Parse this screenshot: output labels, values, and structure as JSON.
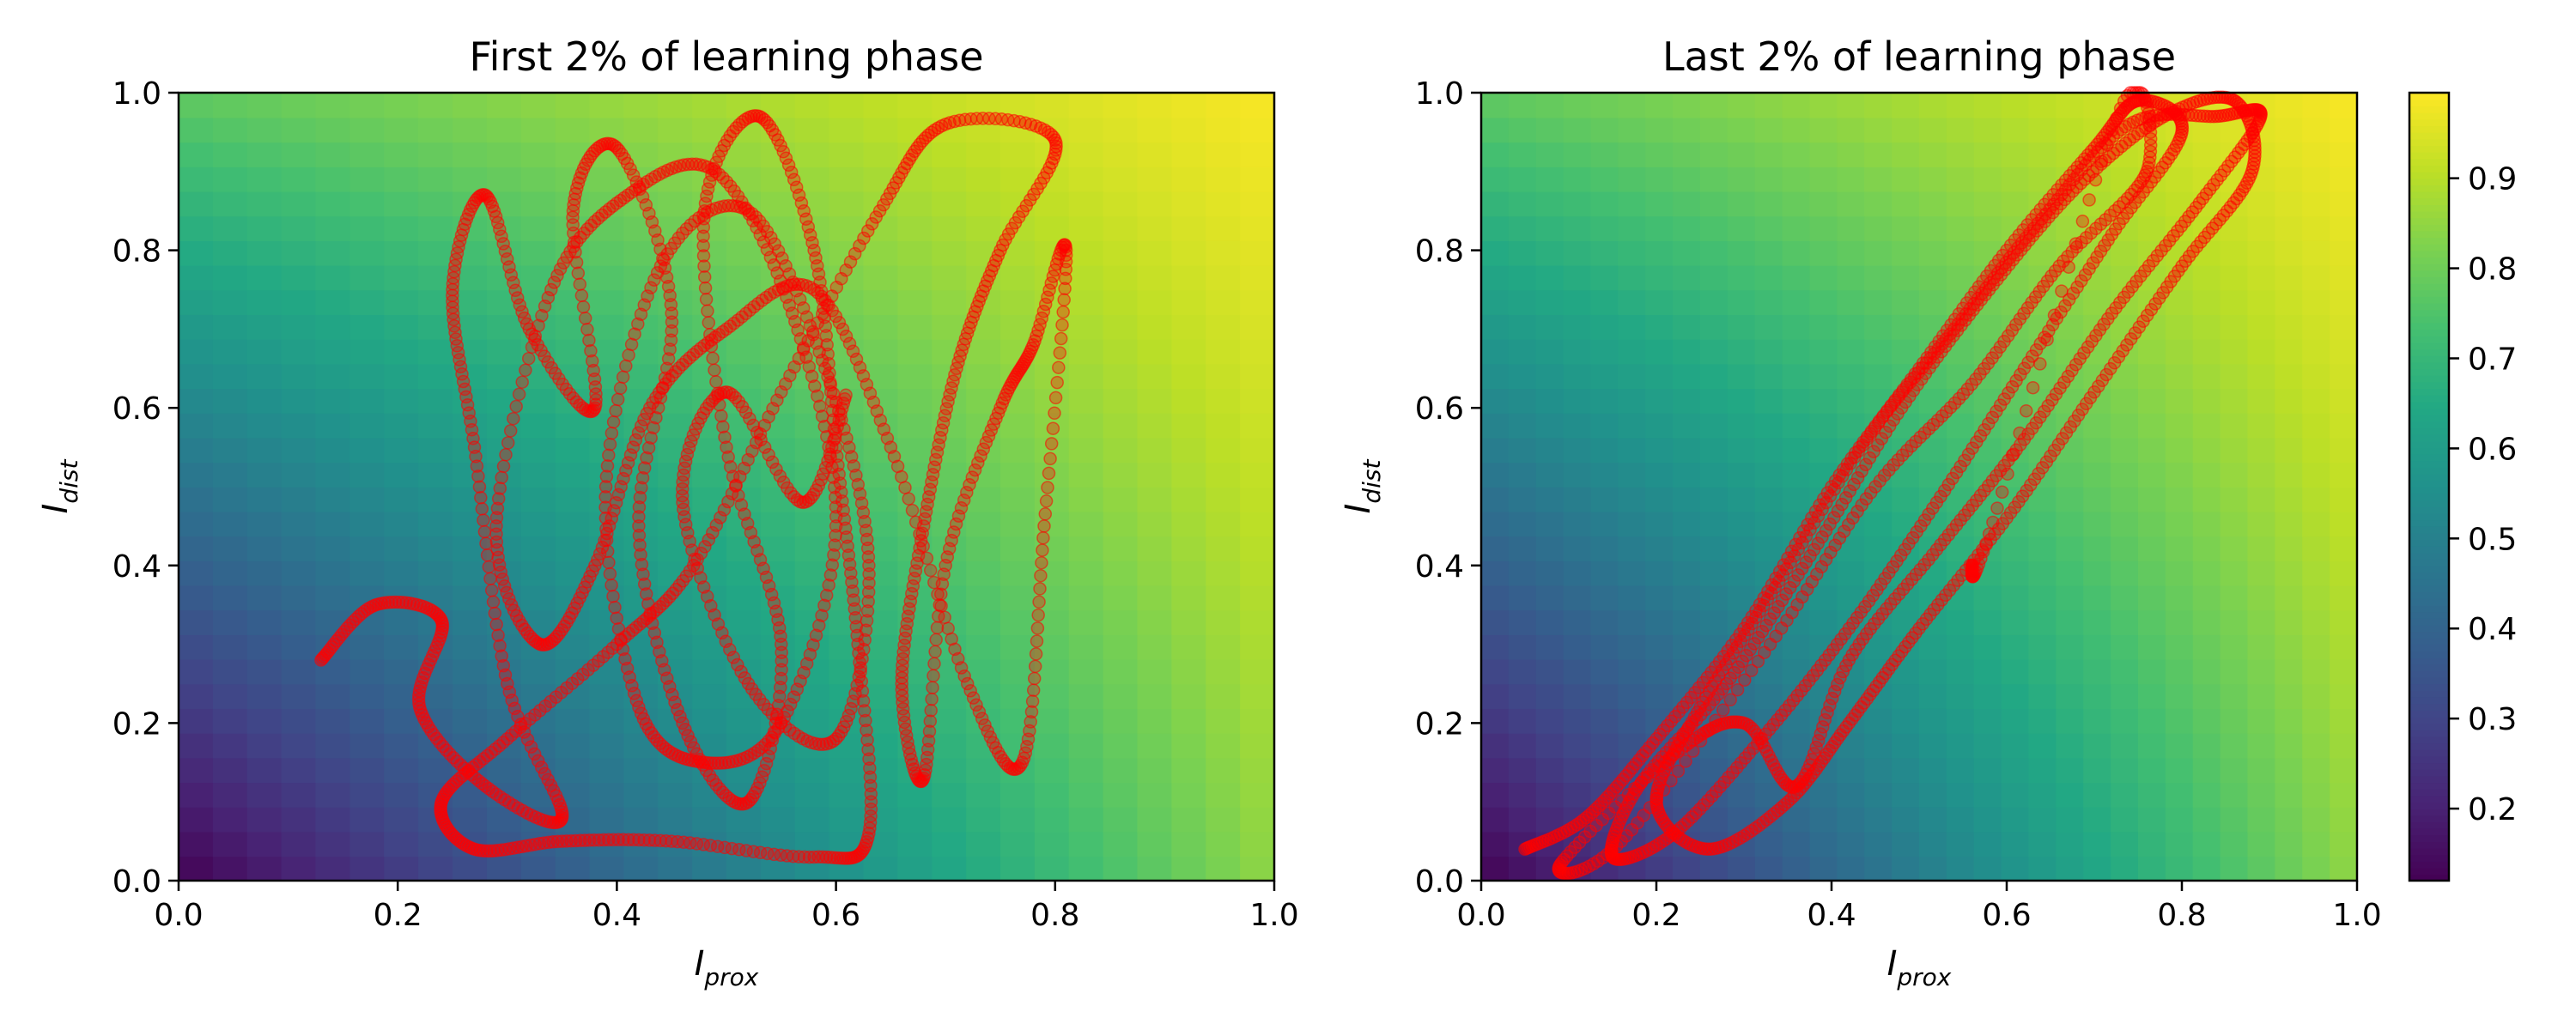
{
  "chart_data": [
    {
      "type": "heatmap",
      "overlay": "scatter",
      "title": "First 2% of learning phase",
      "xlabel": {
        "main": "I",
        "sub": "prox"
      },
      "ylabel": {
        "main": "I",
        "sub": "dist"
      },
      "xlim": [
        0.0,
        1.0
      ],
      "ylim": [
        0.0,
        1.0
      ],
      "xticks": [
        "0.0",
        "0.2",
        "0.4",
        "0.6",
        "0.8",
        "1.0"
      ],
      "yticks": [
        "0.0",
        "0.2",
        "0.4",
        "0.6",
        "0.8",
        "1.0"
      ],
      "heatmap_corners": {
        "bottom_left": 0.12,
        "bottom_right": 0.85,
        "top_left": 0.78,
        "top_right": 0.99
      },
      "trajectory": {
        "color": "#ff0000",
        "points": [
          [
            0.13,
            0.28
          ],
          [
            0.18,
            0.35
          ],
          [
            0.24,
            0.33
          ],
          [
            0.22,
            0.22
          ],
          [
            0.28,
            0.12
          ],
          [
            0.35,
            0.08
          ],
          [
            0.3,
            0.25
          ],
          [
            0.27,
            0.55
          ],
          [
            0.25,
            0.75
          ],
          [
            0.28,
            0.87
          ],
          [
            0.32,
            0.7
          ],
          [
            0.38,
            0.6
          ],
          [
            0.36,
            0.85
          ],
          [
            0.4,
            0.93
          ],
          [
            0.45,
            0.72
          ],
          [
            0.42,
            0.45
          ],
          [
            0.46,
            0.2
          ],
          [
            0.52,
            0.1
          ],
          [
            0.55,
            0.3
          ],
          [
            0.5,
            0.55
          ],
          [
            0.48,
            0.85
          ],
          [
            0.53,
            0.97
          ],
          [
            0.58,
            0.8
          ],
          [
            0.6,
            0.55
          ],
          [
            0.62,
            0.3
          ],
          [
            0.63,
            0.06
          ],
          [
            0.58,
            0.03
          ],
          [
            0.45,
            0.05
          ],
          [
            0.35,
            0.05
          ],
          [
            0.27,
            0.04
          ],
          [
            0.24,
            0.1
          ],
          [
            0.3,
            0.18
          ],
          [
            0.4,
            0.3
          ],
          [
            0.47,
            0.4
          ],
          [
            0.55,
            0.62
          ],
          [
            0.64,
            0.85
          ],
          [
            0.7,
            0.96
          ],
          [
            0.8,
            0.94
          ],
          [
            0.75,
            0.8
          ],
          [
            0.71,
            0.65
          ],
          [
            0.68,
            0.45
          ],
          [
            0.66,
            0.25
          ],
          [
            0.68,
            0.13
          ],
          [
            0.7,
            0.4
          ],
          [
            0.75,
            0.6
          ],
          [
            0.78,
            0.68
          ],
          [
            0.81,
            0.8
          ],
          [
            0.79,
            0.45
          ],
          [
            0.77,
            0.15
          ],
          [
            0.72,
            0.25
          ],
          [
            0.65,
            0.55
          ],
          [
            0.58,
            0.75
          ],
          [
            0.5,
            0.7
          ],
          [
            0.43,
            0.6
          ],
          [
            0.38,
            0.4
          ],
          [
            0.33,
            0.3
          ],
          [
            0.29,
            0.45
          ],
          [
            0.34,
            0.75
          ],
          [
            0.41,
            0.87
          ],
          [
            0.49,
            0.9
          ],
          [
            0.56,
            0.72
          ],
          [
            0.6,
            0.45
          ],
          [
            0.55,
            0.2
          ],
          [
            0.48,
            0.15
          ],
          [
            0.42,
            0.22
          ],
          [
            0.39,
            0.5
          ],
          [
            0.44,
            0.78
          ],
          [
            0.52,
            0.85
          ],
          [
            0.59,
            0.65
          ],
          [
            0.63,
            0.4
          ],
          [
            0.6,
            0.18
          ],
          [
            0.52,
            0.25
          ],
          [
            0.46,
            0.48
          ],
          [
            0.5,
            0.62
          ],
          [
            0.57,
            0.48
          ],
          [
            0.61,
            0.62
          ]
        ]
      }
    },
    {
      "type": "heatmap",
      "overlay": "scatter",
      "title": "Last 2% of learning phase",
      "xlabel": {
        "main": "I",
        "sub": "prox"
      },
      "ylabel": {
        "main": "I",
        "sub": "dist"
      },
      "xlim": [
        0.0,
        1.0
      ],
      "ylim": [
        0.0,
        1.0
      ],
      "xticks": [
        "0.0",
        "0.2",
        "0.4",
        "0.6",
        "0.8",
        "1.0"
      ],
      "yticks": [
        "0.0",
        "0.2",
        "0.4",
        "0.6",
        "0.8",
        "1.0"
      ],
      "heatmap_corners": {
        "bottom_left": 0.12,
        "bottom_right": 0.85,
        "top_left": 0.78,
        "top_right": 0.99
      },
      "trajectory": {
        "color": "#ff0000",
        "points": [
          [
            0.05,
            0.04
          ],
          [
            0.12,
            0.08
          ],
          [
            0.2,
            0.18
          ],
          [
            0.3,
            0.32
          ],
          [
            0.4,
            0.5
          ],
          [
            0.5,
            0.65
          ],
          [
            0.6,
            0.8
          ],
          [
            0.7,
            0.93
          ],
          [
            0.75,
            0.99
          ],
          [
            0.8,
            0.95
          ],
          [
            0.72,
            0.82
          ],
          [
            0.62,
            0.65
          ],
          [
            0.52,
            0.48
          ],
          [
            0.42,
            0.32
          ],
          [
            0.32,
            0.18
          ],
          [
            0.22,
            0.06
          ],
          [
            0.15,
            0.03
          ],
          [
            0.18,
            0.12
          ],
          [
            0.28,
            0.25
          ],
          [
            0.38,
            0.42
          ],
          [
            0.48,
            0.6
          ],
          [
            0.58,
            0.75
          ],
          [
            0.68,
            0.88
          ],
          [
            0.78,
            0.97
          ],
          [
            0.86,
            0.99
          ],
          [
            0.88,
            0.9
          ],
          [
            0.8,
            0.78
          ],
          [
            0.7,
            0.62
          ],
          [
            0.6,
            0.46
          ],
          [
            0.5,
            0.32
          ],
          [
            0.42,
            0.2
          ],
          [
            0.35,
            0.1
          ],
          [
            0.26,
            0.04
          ],
          [
            0.2,
            0.1
          ],
          [
            0.25,
            0.22
          ],
          [
            0.34,
            0.38
          ],
          [
            0.44,
            0.56
          ],
          [
            0.54,
            0.7
          ],
          [
            0.64,
            0.84
          ],
          [
            0.74,
            0.96
          ],
          [
            0.84,
            0.97
          ],
          [
            0.89,
            0.97
          ],
          [
            0.82,
            0.86
          ],
          [
            0.72,
            0.72
          ],
          [
            0.62,
            0.56
          ],
          [
            0.52,
            0.42
          ],
          [
            0.42,
            0.28
          ],
          [
            0.36,
            0.12
          ],
          [
            0.3,
            0.2
          ],
          [
            0.22,
            0.16
          ],
          [
            0.09,
            0.02
          ],
          [
            0.16,
            0.05
          ],
          [
            0.33,
            0.3
          ],
          [
            0.45,
            0.5
          ],
          [
            0.56,
            0.63
          ],
          [
            0.66,
            0.78
          ],
          [
            0.76,
            0.9
          ],
          [
            0.73,
            0.98
          ],
          [
            0.58,
            0.44
          ],
          [
            0.56,
            0.4
          ]
        ]
      }
    }
  ],
  "colorbar": {
    "range": [
      0.12,
      0.995
    ],
    "ticks": [
      "0.2",
      "0.3",
      "0.4",
      "0.5",
      "0.6",
      "0.7",
      "0.8",
      "0.9"
    ],
    "tick_values": [
      0.2,
      0.3,
      0.4,
      0.5,
      0.6,
      0.7,
      0.8,
      0.9
    ],
    "colormap": "viridis"
  }
}
